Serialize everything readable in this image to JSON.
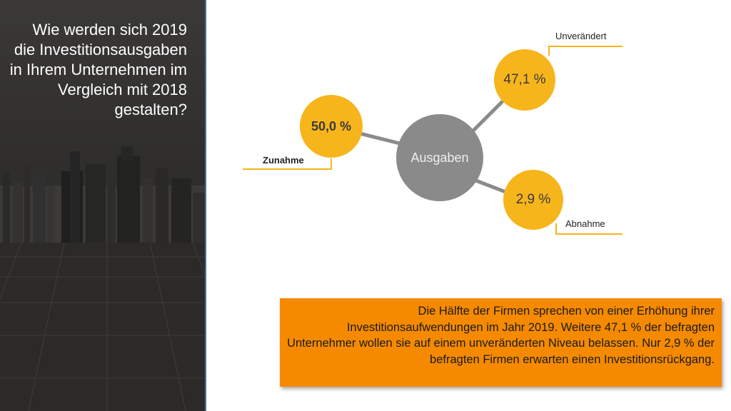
{
  "title": "Wie werden sich 2019 die Investitionsausgaben in Ihrem Unternehmen im Vergleich mit 2018 gestalten?",
  "diagram": {
    "center_label": "Ausgaben",
    "branches": [
      {
        "key": "zunahme",
        "label": "Zunahme",
        "value": "50,0 %"
      },
      {
        "key": "unveraendert",
        "label": "Unverändert",
        "value": "47,1 %"
      },
      {
        "key": "abnahme",
        "label": "Abnahme",
        "value": "2,9 %"
      }
    ]
  },
  "summary": "Die Hälfte der Firmen sprechen von einer Erhöhung ihrer Investitionsaufwendungen im Jahr 2019. Weitere 47,1 % der befragten Unternehmer wollen sie auf einem unveränderten Niveau belassen. Nur 2,9 % der befragten Firmen erwarten einen Investitionsrückgang.",
  "colors": {
    "accent": "#f7b51c",
    "summary_bg": "#f58a00",
    "center": "#8a8a8a",
    "panel": "#2f2e2c"
  }
}
